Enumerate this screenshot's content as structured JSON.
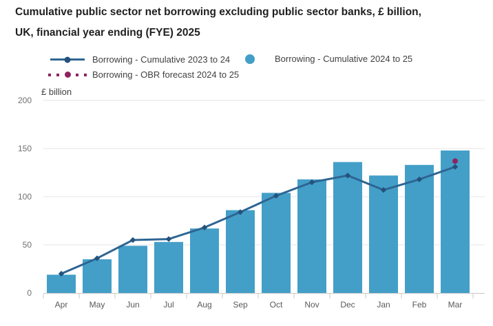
{
  "title": "Cumulative public sector net borrowing excluding public sector banks, £ billion, UK, financial year ending (FYE) 2025",
  "y_axis_unit_label": "£ billion",
  "legend": {
    "items": [
      {
        "label": "Borrowing - Cumulative 2023 to 24",
        "marker": "line-with-dot"
      },
      {
        "label": "Borrowing - Cumulative 2024 to 25",
        "marker": "circle"
      },
      {
        "label": "Borrowing - OBR forecast 2024 to 25",
        "marker": "dotted-with-dot"
      }
    ]
  },
  "colors": {
    "bar": "#439FC8",
    "line": "#2E6593",
    "line_marker": "#24527C",
    "obr_point": "#8C2460",
    "grid": "#E4E4E4",
    "axis": "#C8C8C8",
    "title_text": "#1F1F1F",
    "legend_text": "#414042",
    "ytick_text": "#6F6F6F",
    "xtick_text": "#595959"
  },
  "chart_data": {
    "type": "bar",
    "title": "Cumulative public sector net borrowing excluding public sector banks, £ billion, UK, financial year ending (FYE) 2025",
    "categories": [
      "Apr",
      "May",
      "Jun",
      "Jul",
      "Aug",
      "Sep",
      "Oct",
      "Nov",
      "Dec",
      "Jan",
      "Feb",
      "Mar"
    ],
    "series": [
      {
        "name": "Borrowing - Cumulative 2024 to 25",
        "type": "bar",
        "color": "#439FC8",
        "values": [
          19,
          35,
          49,
          53,
          67,
          86,
          104,
          118,
          136,
          122,
          133,
          148
        ]
      },
      {
        "name": "Borrowing - Cumulative 2023 to 24",
        "type": "line",
        "color": "#2E6593",
        "marker": "diamond",
        "marker_color": "#24527C",
        "values": [
          20,
          36,
          55,
          56,
          68,
          84,
          101,
          115,
          122,
          107,
          118,
          131
        ]
      },
      {
        "name": "Borrowing - OBR forecast 2024 to 25",
        "type": "scatter",
        "color": "#8C2460",
        "points": [
          {
            "x": "Mar",
            "y": 137
          }
        ]
      }
    ],
    "xlabel": "",
    "ylabel": "£ billion",
    "ylim": [
      0,
      200
    ],
    "yticks": [
      0,
      50,
      100,
      150,
      200
    ],
    "grid": "horizontal",
    "legend_position": "top"
  }
}
